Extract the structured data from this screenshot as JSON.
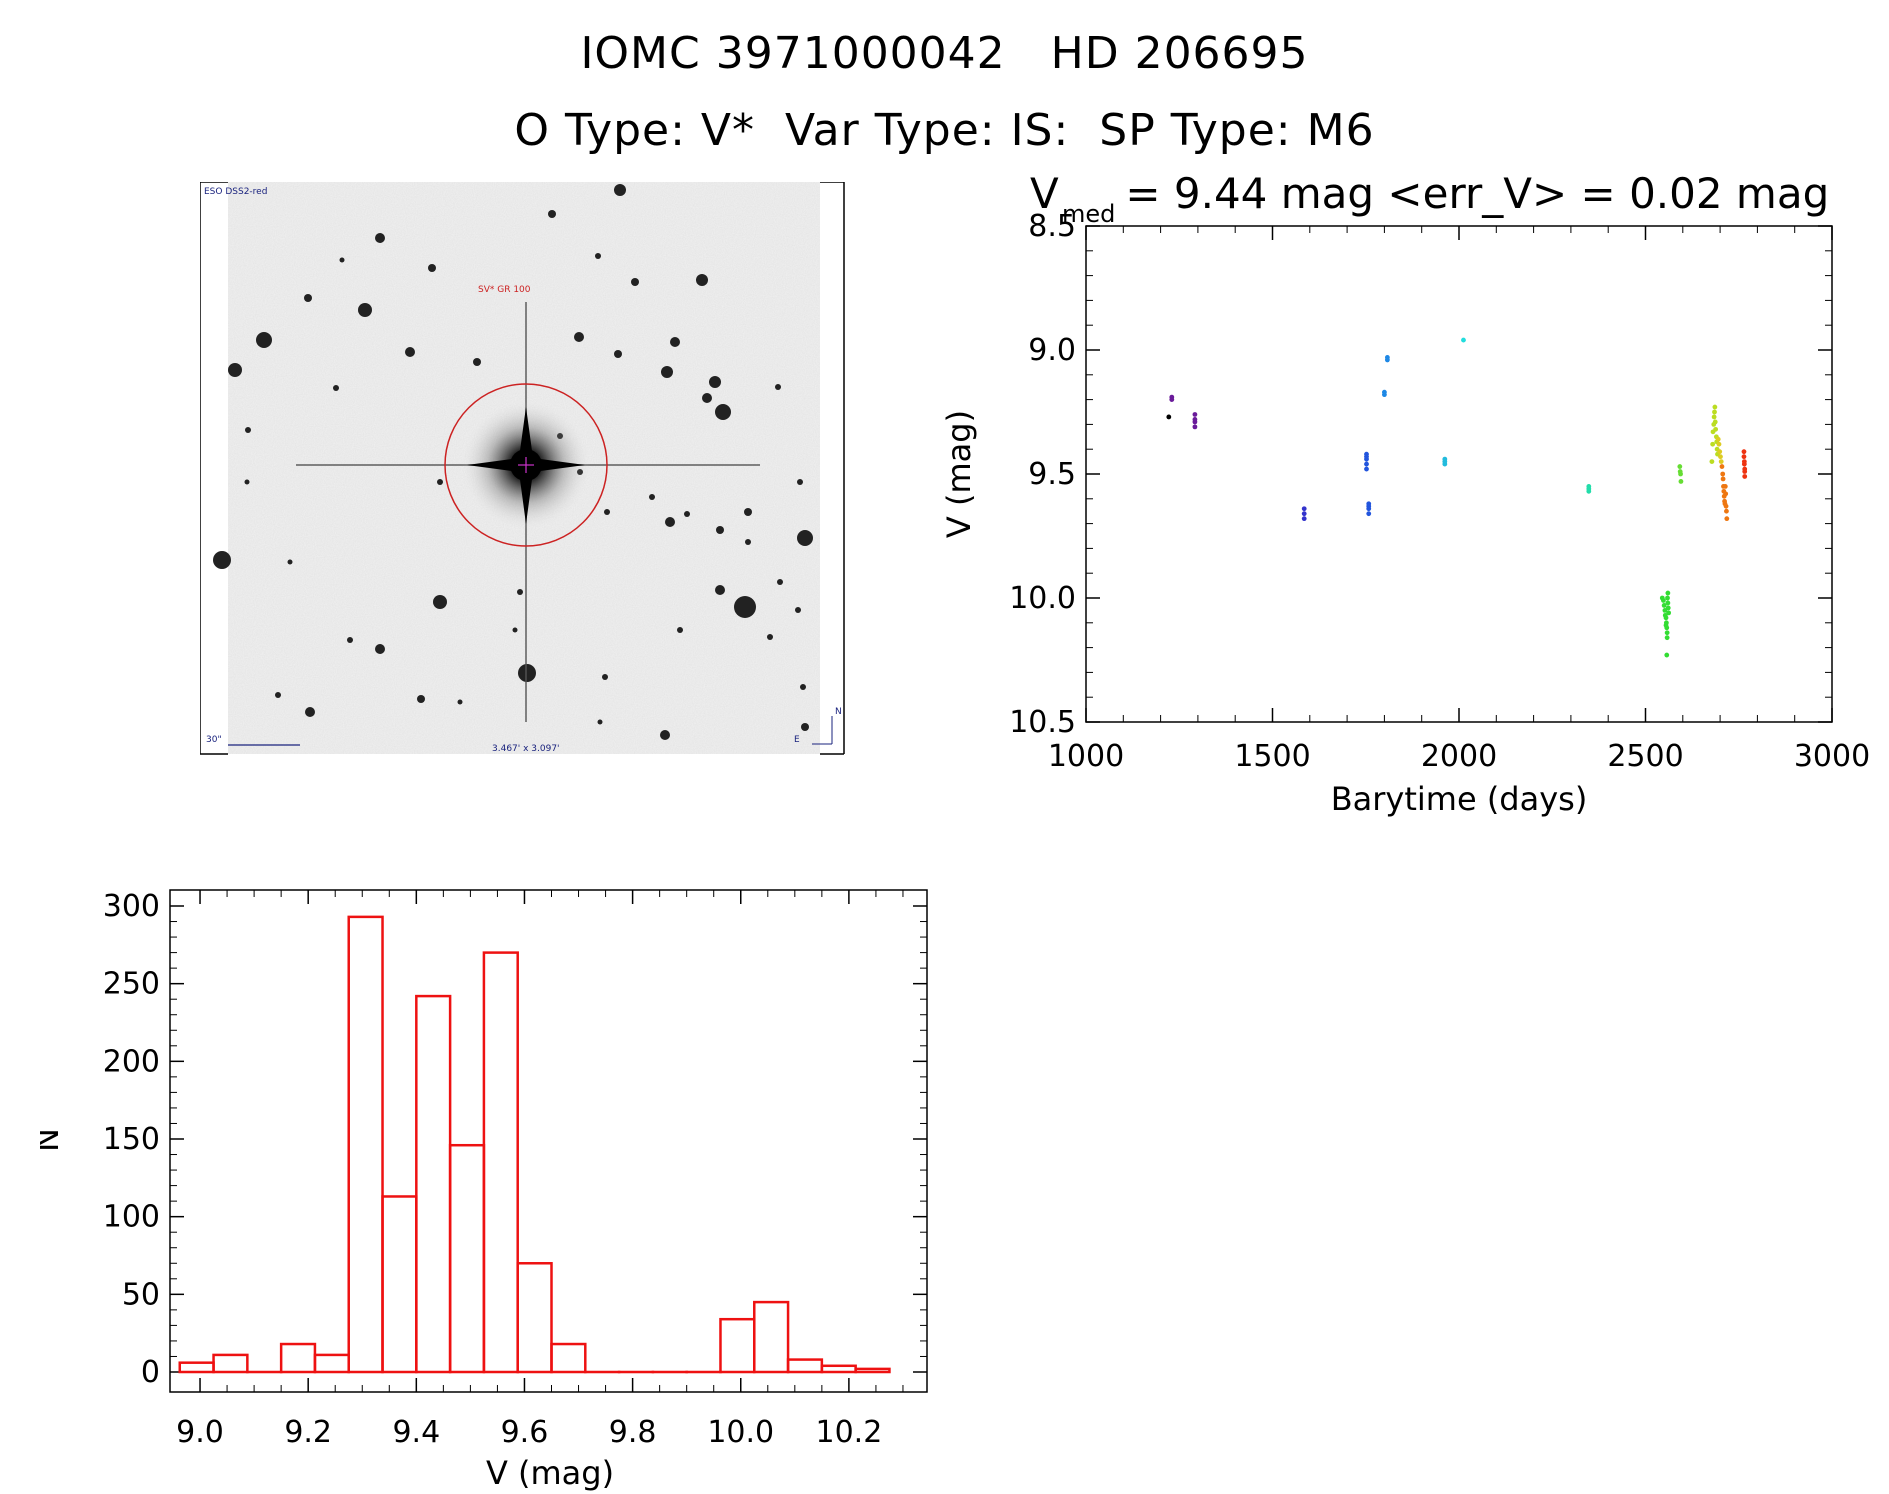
{
  "header": {
    "line1": "IOMC 3971000042   HD 206695",
    "line2": "O Type: V*  Var Type: IS:  SP Type: M6"
  },
  "image_panel": {
    "survey_label": "ESO DSS2-red",
    "object_label": "SV* GR 100",
    "scale_label": "30\"",
    "fov_label": "3.467' x 3.097'",
    "north_label": "N",
    "east_label": "E"
  },
  "colors": {
    "hist": "#ee1111",
    "circle": "#cc2222",
    "frame": "#000000"
  },
  "chart_data": [
    {
      "type": "scatter",
      "title_main": "V",
      "title_sub": "med",
      "title_rest": " = 9.44 mag <err_V> = 0.02 mag",
      "xlabel": "Barytime (days)",
      "ylabel": "V (mag)",
      "xlim": [
        1000,
        3000
      ],
      "ylim": [
        10.5,
        8.5
      ],
      "x_ticks": [
        "1000",
        "1500",
        "2000",
        "2500",
        "3000"
      ],
      "y_ticks": [
        "8.5",
        "9.0",
        "9.5",
        "10.0",
        "10.5"
      ],
      "groups": [
        {
          "color": "#000000",
          "x": [
            1222
          ],
          "y": [
            9.27
          ]
        },
        {
          "color": "#6a1b9a",
          "x": [
            1230,
            1230
          ],
          "y": [
            9.19,
            9.2
          ]
        },
        {
          "color": "#6a1b9a",
          "x": [
            1292,
            1292,
            1292,
            1292
          ],
          "y": [
            9.26,
            9.28,
            9.29,
            9.31
          ]
        },
        {
          "color": "#3333cc",
          "x": [
            1585,
            1585,
            1585
          ],
          "y": [
            9.64,
            9.66,
            9.68
          ]
        },
        {
          "color": "#2255dd",
          "x": [
            1752,
            1752,
            1752,
            1752,
            1752
          ],
          "y": [
            9.42,
            9.43,
            9.44,
            9.46,
            9.48
          ]
        },
        {
          "color": "#2255dd",
          "x": [
            1758,
            1758,
            1758,
            1758
          ],
          "y": [
            9.62,
            9.63,
            9.64,
            9.66
          ]
        },
        {
          "color": "#1e88e5",
          "x": [
            1800,
            1800
          ],
          "y": [
            9.17,
            9.18
          ]
        },
        {
          "color": "#1e88e5",
          "x": [
            1808,
            1808
          ],
          "y": [
            9.03,
            9.04
          ]
        },
        {
          "color": "#22bbdd",
          "x": [
            1962,
            1962,
            1962
          ],
          "y": [
            9.44,
            9.45,
            9.46
          ]
        },
        {
          "color": "#22dddd",
          "x": [
            2012
          ],
          "y": [
            8.96
          ]
        },
        {
          "color": "#22ddaa",
          "x": [
            2348,
            2348,
            2348
          ],
          "y": [
            9.55,
            9.56,
            9.57
          ]
        },
        {
          "color": "#33dd33",
          "x": [
            2545,
            2548,
            2550,
            2552,
            2553,
            2555,
            2556,
            2557,
            2558,
            2558,
            2559,
            2560,
            2560,
            2561,
            2562,
            2555,
            2557
          ],
          "y": [
            10.0,
            10.01,
            10.03,
            10.05,
            10.07,
            10.08,
            10.1,
            10.12,
            10.14,
            10.16,
            10.0,
            9.98,
            10.02,
            10.04,
            10.06,
            10.11,
            10.23
          ]
        },
        {
          "color": "#66dd33",
          "x": [
            2592,
            2593,
            2594,
            2595
          ],
          "y": [
            9.47,
            9.49,
            9.5,
            9.53
          ]
        },
        {
          "color": "#bbdd22",
          "x": [
            2678,
            2680,
            2681,
            2683,
            2684,
            2685,
            2686,
            2687,
            2688,
            2690,
            2691,
            2692,
            2693
          ],
          "y": [
            9.45,
            9.38,
            9.33,
            9.3,
            9.27,
            9.25,
            9.23,
            9.29,
            9.32,
            9.35,
            9.37,
            9.4,
            9.42
          ]
        },
        {
          "color": "#ddcc22",
          "x": [
            2695,
            2697,
            2699,
            2701,
            2703
          ],
          "y": [
            9.36,
            9.38,
            9.41,
            9.43,
            9.45
          ]
        },
        {
          "color": "#ee7711",
          "x": [
            2705,
            2707,
            2708,
            2709,
            2710,
            2711,
            2712,
            2713,
            2714,
            2715,
            2716,
            2717,
            2718
          ],
          "y": [
            9.47,
            9.5,
            9.52,
            9.55,
            9.57,
            9.59,
            9.61,
            9.62,
            9.55,
            9.58,
            9.63,
            9.65,
            9.68
          ]
        },
        {
          "color": "#ee3311",
          "x": [
            2764,
            2764,
            2765,
            2765,
            2766,
            2766,
            2766
          ],
          "y": [
            9.41,
            9.43,
            9.45,
            9.46,
            9.48,
            9.49,
            9.51
          ]
        }
      ]
    },
    {
      "type": "bar",
      "xlabel": "V (mag)",
      "ylabel": "N",
      "xlim": [
        8.95,
        10.35
      ],
      "ylim": [
        0,
        300
      ],
      "x_ticks": [
        "9.0",
        "9.2",
        "9.4",
        "9.6",
        "9.8",
        "10.0",
        "10.2"
      ],
      "y_ticks": [
        "0",
        "50",
        "100",
        "150",
        "200",
        "250",
        "300"
      ],
      "bin_width": 0.0625,
      "bins": [
        8.9625,
        9.025,
        9.0875,
        9.15,
        9.2125,
        9.275,
        9.3375,
        9.4,
        9.4625,
        9.525,
        9.5875,
        9.65,
        9.7125,
        9.775,
        9.8375,
        9.9,
        9.9625,
        10.025,
        10.0875,
        10.15,
        10.2125
      ],
      "values": [
        6,
        11,
        0,
        18,
        11,
        293,
        113,
        242,
        146,
        270,
        70,
        18,
        0,
        0,
        0,
        0,
        34,
        45,
        8,
        4,
        2
      ]
    }
  ]
}
